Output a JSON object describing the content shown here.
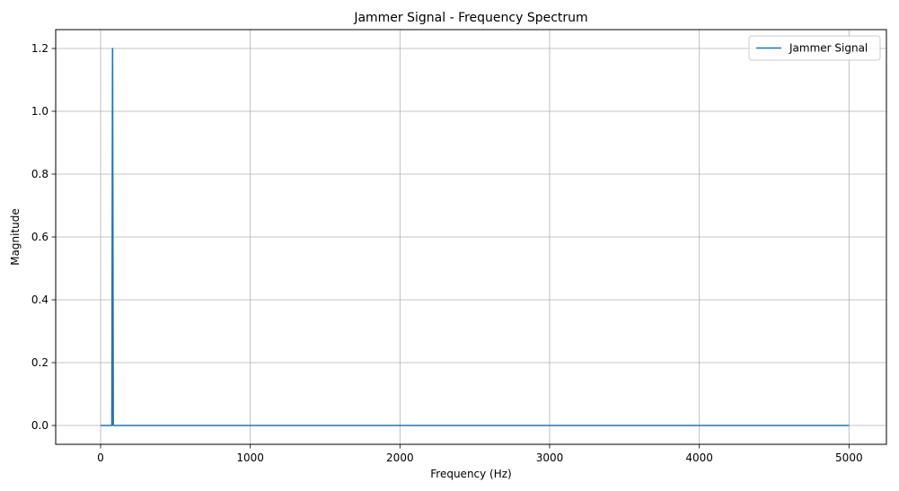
{
  "chart_data": {
    "type": "line",
    "title": "Jammer Signal - Frequency Spectrum",
    "xlabel": "Frequency (Hz)",
    "ylabel": "Magnitude",
    "xlim": [
      -300,
      5250
    ],
    "ylim": [
      -0.06,
      1.26
    ],
    "xticks": [
      0,
      1000,
      2000,
      3000,
      4000,
      5000
    ],
    "xtick_labels": [
      "0",
      "1000",
      "2000",
      "3000",
      "4000",
      "5000"
    ],
    "yticks": [
      0.0,
      0.2,
      0.4,
      0.6,
      0.8,
      1.0,
      1.2
    ],
    "ytick_labels": [
      "0.0",
      "0.2",
      "0.4",
      "0.6",
      "0.8",
      "1.0",
      "1.2"
    ],
    "grid": true,
    "legend_position": "top-right",
    "series": [
      {
        "name": "Jammer Signal",
        "color": "#1f77b4",
        "x": [
          0,
          75,
          80,
          85,
          5000
        ],
        "y": [
          0,
          0,
          1.2,
          0,
          0
        ]
      }
    ]
  }
}
